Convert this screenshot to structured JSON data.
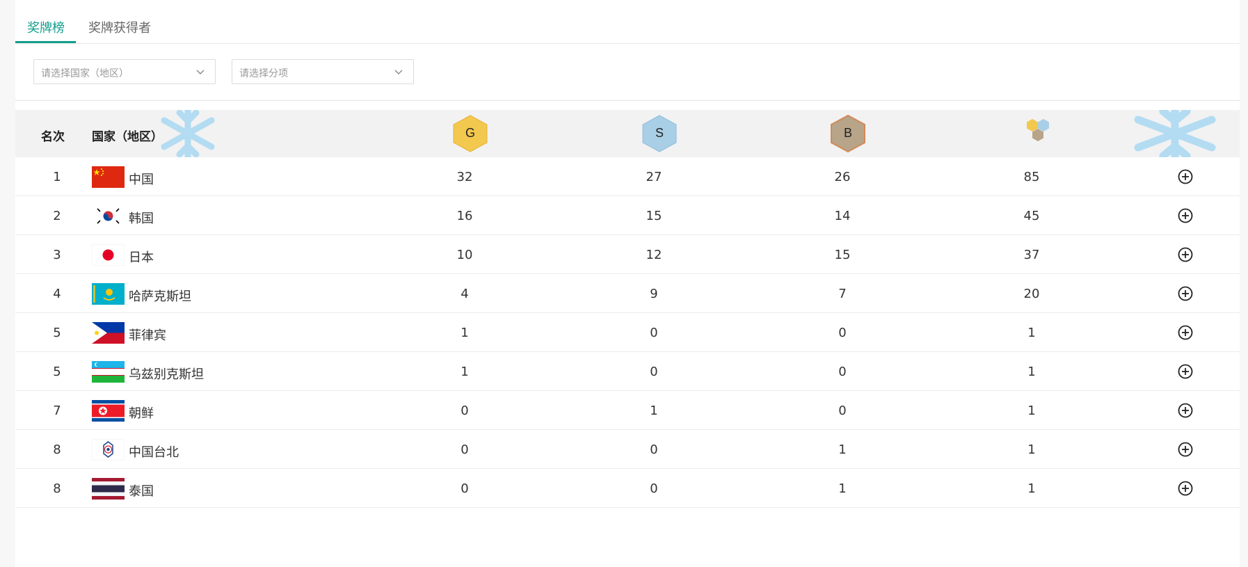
{
  "tabs": [
    {
      "label": "奖牌榜",
      "active": true
    },
    {
      "label": "奖牌获得者",
      "active": false
    }
  ],
  "filters": {
    "country_placeholder": "请选择国家（地区）",
    "event_placeholder": "请选择分项"
  },
  "table": {
    "headers": {
      "rank": "名次",
      "country": "国家（地区）",
      "gold": "G",
      "silver": "S",
      "bronze": "B"
    },
    "colors": {
      "accent": "#119e8c",
      "gold": "#f3c84e",
      "silver": "#a9cfe6",
      "bronze": "#c09a63",
      "flake": "#b3dcf2"
    },
    "rows": [
      {
        "rank": "1",
        "country": "中国",
        "flag": "flag-china",
        "gold": "32",
        "silver": "27",
        "bronze": "26",
        "total": "85"
      },
      {
        "rank": "2",
        "country": "韩国",
        "flag": "flag-korea",
        "gold": "16",
        "silver": "15",
        "bronze": "14",
        "total": "45"
      },
      {
        "rank": "3",
        "country": "日本",
        "flag": "flag-japan",
        "gold": "10",
        "silver": "12",
        "bronze": "15",
        "total": "37"
      },
      {
        "rank": "4",
        "country": "哈萨克斯坦",
        "flag": "flag-kazakhstan",
        "gold": "4",
        "silver": "9",
        "bronze": "7",
        "total": "20"
      },
      {
        "rank": "5",
        "country": "菲律宾",
        "flag": "flag-philippines",
        "gold": "1",
        "silver": "0",
        "bronze": "0",
        "total": "1"
      },
      {
        "rank": "5",
        "country": "乌兹别克斯坦",
        "flag": "flag-uzbekistan",
        "gold": "1",
        "silver": "0",
        "bronze": "0",
        "total": "1"
      },
      {
        "rank": "7",
        "country": "朝鲜",
        "flag": "flag-dprk",
        "gold": "0",
        "silver": "1",
        "bronze": "0",
        "total": "1"
      },
      {
        "rank": "8",
        "country": "中国台北",
        "flag": "flag-chinese-taipei",
        "gold": "0",
        "silver": "0",
        "bronze": "1",
        "total": "1"
      },
      {
        "rank": "8",
        "country": "泰国",
        "flag": "flag-thailand",
        "gold": "0",
        "silver": "0",
        "bronze": "1",
        "total": "1"
      }
    ],
    "row_action_icon": "plus-circle-icon"
  }
}
